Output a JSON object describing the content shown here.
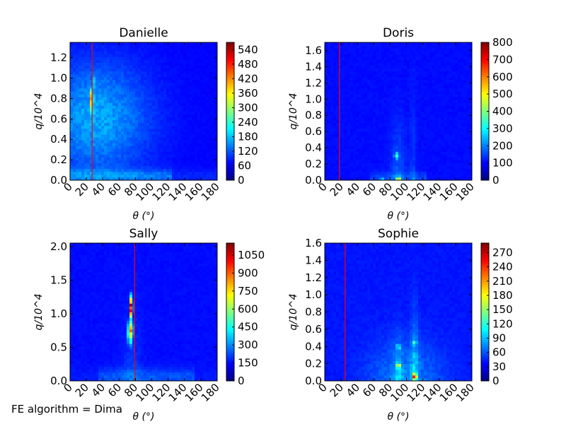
{
  "footer": "FE algorithm = Dima",
  "chart_data": [
    {
      "type": "heatmap",
      "title": "Danielle",
      "xlabel": "θ (°)",
      "ylabel": "q/10^4",
      "xlim": [
        0,
        180
      ],
      "ylim": [
        0,
        1.35
      ],
      "xticks": [
        0,
        20,
        40,
        60,
        80,
        100,
        120,
        140,
        160,
        180
      ],
      "yticks": [
        0.0,
        0.2,
        0.4,
        0.6,
        0.8,
        1.0,
        1.2
      ],
      "vline_x": 27,
      "colorbar": {
        "min": 0,
        "max": 570,
        "ticks": [
          0,
          60,
          120,
          180,
          240,
          300,
          360,
          420,
          480,
          540
        ]
      },
      "hotspots": [
        {
          "x": 27,
          "y": 0.8,
          "value": 560,
          "note": "peak"
        },
        {
          "x": 27,
          "y": 0.7,
          "value": 250
        },
        {
          "x": 30,
          "y": 0.95,
          "value": 160
        }
      ]
    },
    {
      "type": "heatmap",
      "title": "Doris",
      "xlabel": "θ (°)",
      "ylabel": "q/10^4",
      "xlim": [
        0,
        180
      ],
      "ylim": [
        0,
        1.7
      ],
      "xticks": [
        0,
        20,
        40,
        60,
        80,
        100,
        120,
        140,
        160,
        180
      ],
      "yticks": [
        0.0,
        0.2,
        0.4,
        0.6,
        0.8,
        1.0,
        1.2,
        1.4,
        1.6
      ],
      "vline_x": 18,
      "colorbar": {
        "min": 0,
        "max": 800,
        "ticks": [
          0,
          100,
          200,
          300,
          400,
          500,
          600,
          700,
          800
        ]
      },
      "hotspots": [
        {
          "x": 90,
          "y": 0.01,
          "value": 800,
          "note": "peak"
        },
        {
          "x": 88,
          "y": 0.3,
          "value": 320
        },
        {
          "x": 70,
          "y": 0.01,
          "value": 200
        },
        {
          "x": 108,
          "y": 0.01,
          "value": 180
        }
      ]
    },
    {
      "type": "heatmap",
      "title": "Sally",
      "xlabel": "θ (°)",
      "ylabel": "q/10^4",
      "xlim": [
        0,
        180
      ],
      "ylim": [
        0,
        2.05
      ],
      "xticks": [
        0,
        20,
        40,
        60,
        80,
        100,
        120,
        140,
        160,
        180
      ],
      "yticks": [
        0.0,
        0.5,
        1.0,
        1.5,
        2.0
      ],
      "vline_x": 79,
      "colorbar": {
        "min": 0,
        "max": 1150,
        "ticks": [
          0,
          150,
          300,
          450,
          600,
          750,
          900,
          1050
        ]
      },
      "hotspots": [
        {
          "x": 75,
          "y": 1.1,
          "value": 1100,
          "note": "peak"
        },
        {
          "x": 74,
          "y": 0.75,
          "value": 780
        },
        {
          "x": 74,
          "y": 0.65,
          "value": 450
        }
      ]
    },
    {
      "type": "heatmap",
      "title": "Sophie",
      "xlabel": "θ (°)",
      "ylabel": "q/10^4",
      "xlim": [
        0,
        180
      ],
      "ylim": [
        0,
        1.6
      ],
      "xticks": [
        0,
        20,
        40,
        60,
        80,
        100,
        120,
        140,
        160,
        180
      ],
      "yticks": [
        0.0,
        0.2,
        0.4,
        0.6,
        0.8,
        1.0,
        1.2,
        1.4,
        1.6
      ],
      "vline_x": 25,
      "colorbar": {
        "min": 0,
        "max": 290,
        "ticks": [
          0,
          30,
          60,
          90,
          120,
          150,
          180,
          210,
          240,
          270
        ]
      },
      "hotspots": [
        {
          "x": 90,
          "y": 0.18,
          "value": 280,
          "note": "peak"
        },
        {
          "x": 110,
          "y": 0.05,
          "value": 260
        },
        {
          "x": 110,
          "y": 0.45,
          "value": 120
        },
        {
          "x": 90,
          "y": 0.4,
          "value": 110
        }
      ]
    }
  ]
}
